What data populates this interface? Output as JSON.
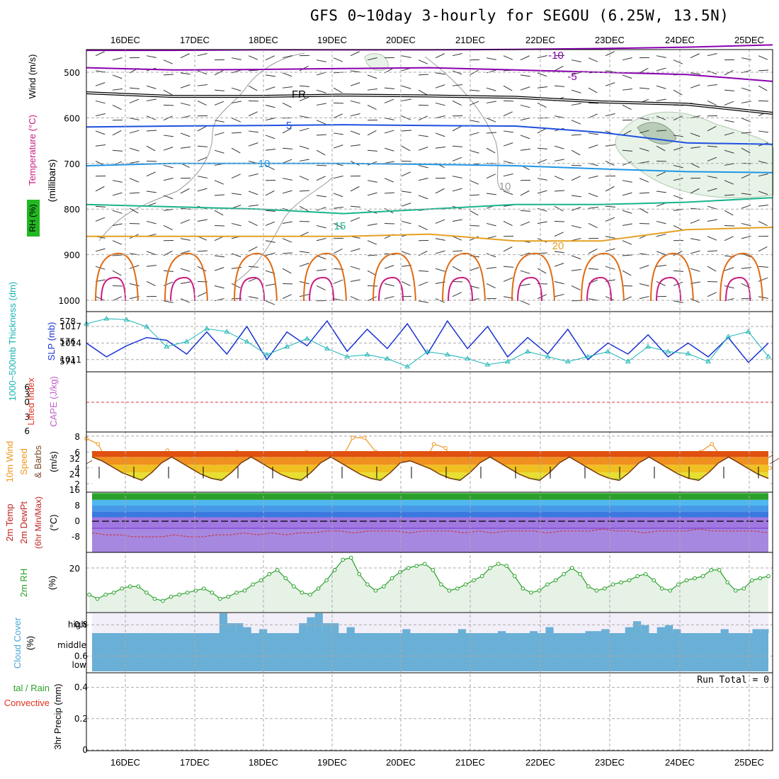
{
  "title": "GFS 0~10day 3-hourly for SEGOU (6.25W, 13.5N)",
  "dates": [
    "16DEC",
    "17DEC",
    "18DEC",
    "19DEC",
    "20DEC",
    "21DEC",
    "22DEC",
    "23DEC",
    "24DEC",
    "25DEC"
  ],
  "run_total": "Run Total = 0",
  "colors": {
    "purple": "#8a00b0",
    "black": "#000000",
    "blue5": "#1e50e0",
    "blue10": "#1e96e6",
    "green15": "#19b48c",
    "orange20": "#e6a022",
    "orange25": "#e06a10",
    "magenta30": "#cc1a80",
    "slp": "#1a32d2",
    "thickness": "#19b4b4",
    "wind10m": "#f0961e",
    "barb": "#7a4a2a",
    "rh": "#2aa02a",
    "rhfill": "#e6f2e6",
    "cloud": "#6aafd6",
    "cloudbg": "#f3eff9",
    "grid": "#aaaaaa"
  },
  "chart_data": [
    {
      "type": "line",
      "panel": "upper-air",
      "ylabel": "(millibars)",
      "y_title_parts": [
        "RH (%)",
        "Temperature (°C)",
        "Wind (m/s)"
      ],
      "yticks": [
        500,
        600,
        700,
        800,
        900,
        1000
      ],
      "contour_labels": [
        "-10",
        "-5",
        "FR",
        "5",
        "10",
        "15",
        "20",
        "10"
      ],
      "series": [
        {
          "name": "-10",
          "pressure": [
            452,
            452,
            451,
            451,
            451,
            450,
            448,
            445,
            440
          ]
        },
        {
          "name": "-5",
          "pressure": [
            490,
            495,
            494,
            492,
            490,
            495,
            500,
            505,
            520
          ]
        },
        {
          "name": "FR",
          "pressure": [
            545,
            553,
            553,
            550,
            552,
            555,
            565,
            570,
            590
          ]
        },
        {
          "name": "5",
          "pressure": [
            620,
            618,
            617,
            615,
            617,
            618,
            632,
            655,
            658
          ]
        },
        {
          "name": "10",
          "pressure": [
            705,
            700,
            700,
            700,
            702,
            705,
            712,
            718,
            720
          ]
        },
        {
          "name": "15",
          "pressure": [
            790,
            795,
            800,
            810,
            800,
            790,
            790,
            785,
            775
          ]
        },
        {
          "name": "20",
          "pressure": [
            860,
            860,
            860,
            860,
            855,
            870,
            870,
            845,
            840
          ]
        }
      ]
    },
    {
      "type": "line",
      "panel": "slp-thickness",
      "ylabel_left": "1000~500mb Thickness (dm)",
      "ylabel_right": "SLP (mb)",
      "left_ticks": [
        578,
        576,
        574
      ],
      "right_ticks": [
        1017,
        1014,
        1011
      ],
      "series": [
        {
          "name": "SLP (mb)",
          "values": [
            1014,
            1011.5,
            1013.5,
            1015,
            1014.5,
            1012,
            1016,
            1012,
            1017,
            1011,
            1016,
            1013.5,
            1018,
            1012.5,
            1016.5,
            1013,
            1017.5,
            1012,
            1018,
            1013,
            1017,
            1011.5,
            1015,
            1012,
            1016.5,
            1011,
            1014,
            1012,
            1015.5,
            1011.5,
            1014,
            1011.5,
            1015,
            1010.5,
            1014
          ]
        },
        {
          "name": "1000~500mb Thickness (dm)",
          "values": [
            577.8,
            578.3,
            578.2,
            577.5,
            575.5,
            576.0,
            577.3,
            577.0,
            576.0,
            574.7,
            575.5,
            576.3,
            575.3,
            574.5,
            574.7,
            574.3,
            573.5,
            575.0,
            574.7,
            574.3,
            573.7,
            574.0,
            575.0,
            574.5,
            574.0,
            574.5,
            575.0,
            574.0,
            575.5,
            575.0,
            574.8,
            574.0,
            576.5,
            577.0,
            574.5
          ]
        }
      ]
    },
    {
      "type": "line",
      "panel": "instability",
      "ylabel_left": "Lifted Index",
      "ylabel_right": "CAPE (J/kg)",
      "ticks": [
        6,
        3,
        0,
        3,
        6
      ],
      "series": []
    },
    {
      "type": "line",
      "panel": "10m-wind",
      "ylabel": "10m Wind Speed & Barbs (m/s)",
      "ylim": [
        1,
        8
      ],
      "yticks": [
        2,
        4,
        6,
        8
      ],
      "series": [
        {
          "name": "10m Wind Speed",
          "values": [
            7.7,
            7.0,
            4.3,
            4.3,
            3.8,
            4.0,
            5.0,
            6.2,
            5.0,
            3.0,
            3.8,
            4.2,
            5.2,
            6.0,
            4.8,
            3.5,
            4.5,
            5.5,
            4.0,
            6.0,
            4.8,
            4.5,
            5.0,
            7.8,
            7.8,
            6.0,
            4.0,
            4.0,
            4.3,
            4.0,
            7.0,
            6.5,
            4.0,
            3.5,
            3.8,
            3.8,
            5.0,
            2.5,
            2.5,
            3.0,
            3.7,
            3.5,
            1.5,
            3.0,
            3.5,
            4.0,
            3.8,
            4.5,
            3.5,
            3.0,
            4.5,
            4.5,
            4.5,
            6.0,
            7.0,
            5.0,
            3.8,
            3.6,
            3.8,
            4.0
          ]
        }
      ]
    },
    {
      "type": "area",
      "panel": "2m-temp",
      "ylabel": "2m Temp 2m DewPt (6hr Min/Max) (°C)",
      "yticks": [
        32,
        24,
        16,
        8,
        0,
        -8
      ],
      "series": [
        {
          "name": "2m Temp",
          "values": [
            33,
            31,
            28,
            25,
            23,
            21,
            25,
            30,
            33,
            30,
            27,
            24,
            22,
            21,
            25,
            30,
            33,
            30,
            27,
            24,
            22,
            21,
            25,
            30,
            33,
            30,
            27,
            24,
            22,
            21,
            25,
            30,
            31,
            29,
            27,
            24,
            22,
            21,
            25,
            30,
            33,
            30,
            27,
            24,
            22,
            21,
            25,
            30,
            33,
            30,
            27,
            24,
            22,
            21,
            25,
            30,
            33,
            30,
            27,
            24,
            22,
            21,
            25,
            30,
            33,
            30,
            27,
            24,
            22
          ]
        },
        {
          "name": "2m DewPt",
          "values": [
            -6,
            -7,
            -7,
            -8,
            -8,
            -8,
            -7,
            -8,
            -8,
            -7,
            -7,
            -6,
            -7,
            -6,
            -7,
            -6,
            -6,
            -5,
            -5,
            -6,
            -5,
            -5,
            -5,
            -6,
            -5,
            -5,
            -5,
            -6,
            -5,
            -6,
            -5,
            -5,
            -5,
            -6,
            -5,
            -5,
            -5,
            -4,
            -5,
            -5,
            -6,
            -5,
            -5,
            -5,
            -4,
            -5,
            -5,
            -5,
            -5,
            -6
          ]
        }
      ]
    },
    {
      "type": "area",
      "panel": "2m-rh",
      "ylabel": "2m RH (%)",
      "yticks": [
        20
      ],
      "series": [
        {
          "name": "2m RH",
          "values": [
            7,
            5,
            7,
            8,
            10,
            11,
            11,
            8,
            5,
            4,
            6,
            7,
            8,
            9,
            10,
            8,
            5,
            6,
            8,
            9,
            12,
            14,
            17,
            19,
            15,
            11,
            8,
            7,
            10,
            14,
            19,
            24,
            25,
            17,
            12,
            9,
            11,
            15,
            18,
            20,
            21,
            22,
            19,
            12,
            9,
            10,
            12,
            14,
            16,
            20,
            22,
            21,
            16,
            10,
            8,
            9,
            12,
            14,
            17,
            20,
            17,
            11,
            9,
            10,
            12,
            13,
            14,
            16,
            17,
            14,
            10,
            9,
            12,
            14,
            15,
            16,
            19,
            19,
            13,
            9,
            10,
            14,
            15,
            16
          ]
        }
      ]
    },
    {
      "type": "bar",
      "panel": "cloud-cover",
      "ylabel": "Cloud Cover (%)",
      "level_labels": [
        "high",
        "middle",
        "low"
      ],
      "series": [
        {
          "name": "high",
          "values": [
            100,
            100,
            100,
            100,
            100,
            100,
            100,
            100,
            100,
            100,
            100,
            100,
            100,
            100,
            100,
            100,
            90,
            95,
            95,
            97,
            100,
            98,
            100,
            100,
            100,
            100,
            95,
            92,
            90,
            95,
            95,
            100,
            97,
            100,
            100,
            100,
            100,
            100,
            100,
            98,
            100,
            100,
            100,
            100,
            100,
            100,
            98,
            100,
            100,
            100,
            100,
            99,
            100,
            100,
            100,
            99,
            100,
            97,
            100,
            100,
            100,
            100,
            99,
            99,
            98,
            100,
            100,
            97,
            94,
            96,
            100,
            97,
            96,
            98,
            100,
            100,
            100,
            100,
            100,
            98,
            100,
            100,
            100,
            98,
            98
          ]
        },
        {
          "name": "middle",
          "values": [
            100,
            100,
            100,
            100,
            100,
            100,
            100,
            100,
            100,
            100
          ]
        },
        {
          "name": "low",
          "values": [
            100,
            100,
            100,
            100,
            100,
            100,
            100,
            100,
            100,
            100
          ]
        }
      ]
    },
    {
      "type": "bar",
      "panel": "precip",
      "ylabel": "3hr Precip (mm)",
      "ylabel_left": "Total / Rain Convective",
      "ylim": [
        0,
        0.9
      ],
      "yticks": [
        0,
        0.2,
        0.4,
        0.6,
        0.8
      ],
      "values": []
    }
  ]
}
